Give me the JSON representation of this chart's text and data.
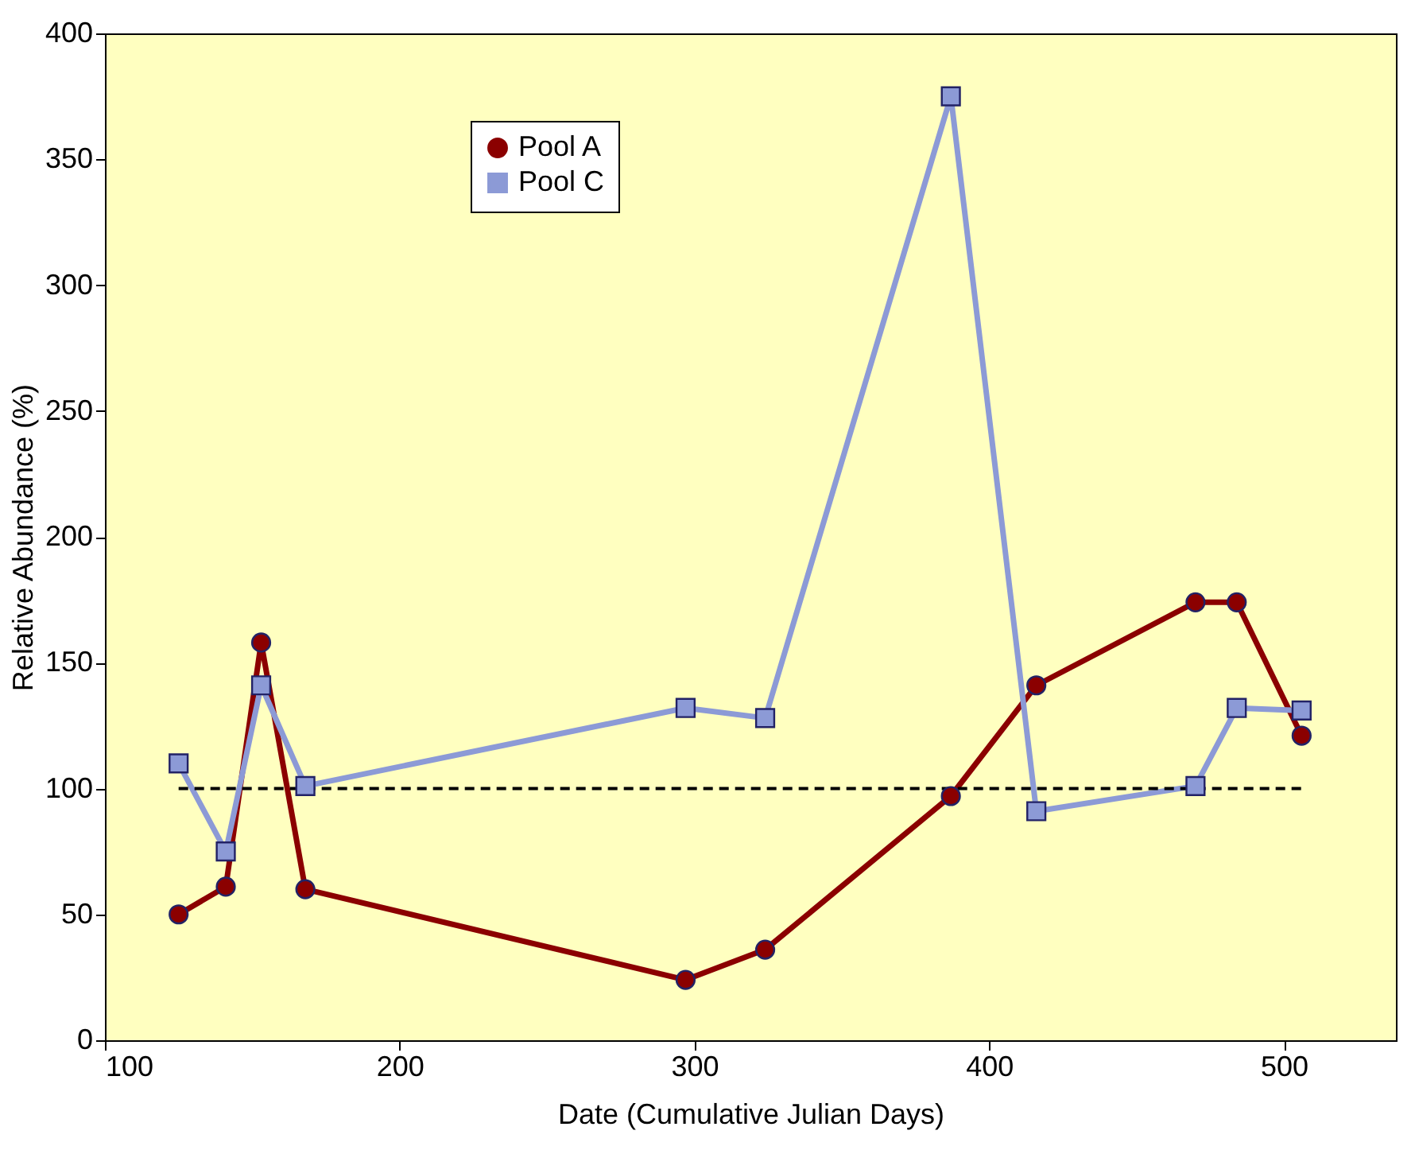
{
  "chart_data": {
    "type": "line",
    "xlabel": "Date (Cumulative Julian Days)",
    "ylabel": "Relative Abundance (%)",
    "x": [
      125,
      141,
      153,
      168,
      297,
      324,
      387,
      416,
      470,
      484,
      506
    ],
    "series": [
      {
        "name": "Pool A",
        "color": "#8b0000",
        "marker": "circle",
        "values": [
          50,
          61,
          158,
          60,
          24,
          36,
          97,
          141,
          174,
          174,
          121
        ]
      },
      {
        "name": "Pool C",
        "color": "#8c9ad6",
        "marker": "square",
        "values": [
          110,
          75,
          141,
          101,
          132,
          128,
          375,
          91,
          101,
          132,
          131
        ]
      }
    ],
    "xlim": [
      100,
      538
    ],
    "xticks": [
      100,
      200,
      300,
      400,
      500
    ],
    "ylim": [
      0,
      400
    ],
    "yticks": [
      0,
      50,
      100,
      150,
      200,
      250,
      300,
      350,
      400
    ],
    "ref_lines": [
      {
        "axis": "y",
        "value": 100,
        "color": "#000000",
        "line_style": "dashed"
      }
    ],
    "legend": "top left",
    "grid": false,
    "line_style": "solid"
  }
}
